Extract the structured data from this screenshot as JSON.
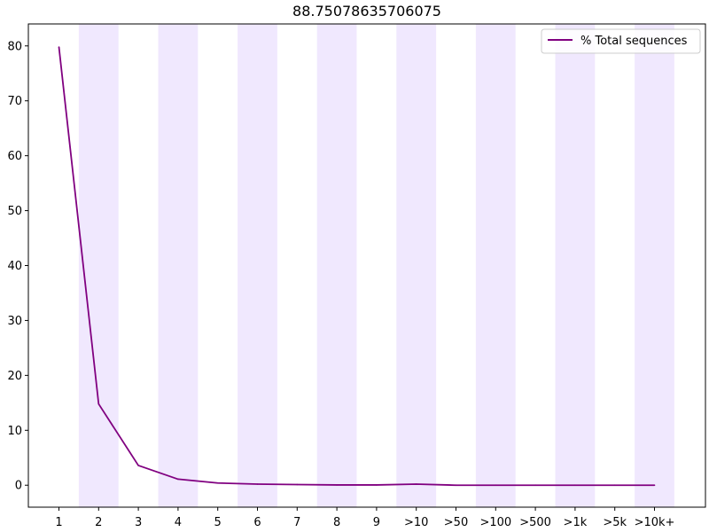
{
  "chart_data": {
    "type": "line",
    "title": "88.75078635706075",
    "xlabel": "",
    "ylabel": "",
    "categories": [
      "1",
      "2",
      "3",
      "4",
      "5",
      "6",
      "7",
      "8",
      "9",
      ">10",
      ">50",
      ">100",
      ">500",
      ">1k",
      ">5k",
      ">10k+"
    ],
    "series": [
      {
        "name": "% Total sequences",
        "color": "#800080",
        "values": [
          79.8,
          14.8,
          3.6,
          1.1,
          0.4,
          0.2,
          0.12,
          0.05,
          0.05,
          0.2,
          0.0,
          0.0,
          0.0,
          0.0,
          0.0,
          0.0
        ]
      }
    ],
    "ylim": [
      -4,
      84
    ],
    "yticks": [
      0,
      10,
      20,
      30,
      40,
      50,
      60,
      70,
      80
    ],
    "grid": false,
    "legend_position": "top-right",
    "band_color": "#e6d8fd",
    "band_opacity": 0.6
  }
}
